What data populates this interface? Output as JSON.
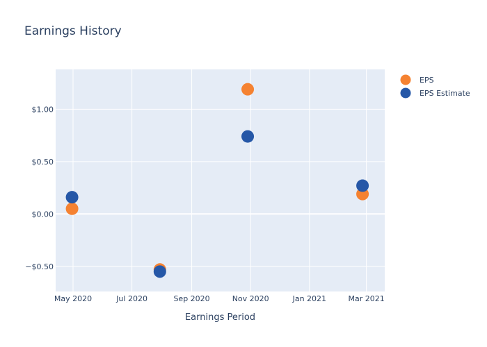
{
  "chart_data": {
    "type": "scatter",
    "title": "Earnings History",
    "xlabel": "Earnings Period",
    "ylabel": "",
    "x_tick_labels": [
      "May 2020",
      "Jul 2020",
      "Sep 2020",
      "Nov 2020",
      "Jan 2021",
      "Mar 2021"
    ],
    "x_tick_dates": [
      "2020-05-01",
      "2020-07-01",
      "2020-09-01",
      "2020-11-01",
      "2021-01-01",
      "2021-03-01"
    ],
    "xlim": [
      "2020-04-13",
      "2021-03-20"
    ],
    "y_tick_labels": [
      "−$0.50",
      "$0.00",
      "$0.50",
      "$1.00"
    ],
    "y_tick_values": [
      -0.5,
      0,
      0.5,
      1
    ],
    "ylim": [
      -0.74,
      1.38
    ],
    "grid": true,
    "legend_position": "top-right",
    "series": [
      {
        "name": "EPS",
        "color": "#f58231",
        "points": [
          {
            "x": "2020-04-30",
            "y": 0.05
          },
          {
            "x": "2020-07-30",
            "y": -0.53
          },
          {
            "x": "2020-10-29",
            "y": 1.19
          },
          {
            "x": "2021-02-25",
            "y": 0.19
          }
        ]
      },
      {
        "name": "EPS Estimate",
        "color": "#2557a7",
        "points": [
          {
            "x": "2020-04-30",
            "y": 0.16
          },
          {
            "x": "2020-07-30",
            "y": -0.55
          },
          {
            "x": "2020-10-29",
            "y": 0.74
          },
          {
            "x": "2021-02-25",
            "y": 0.27
          }
        ]
      }
    ]
  },
  "colors": {
    "plot_background": "#e5ecf6",
    "grid": "#ffffff",
    "text": "#2a3f5f"
  }
}
